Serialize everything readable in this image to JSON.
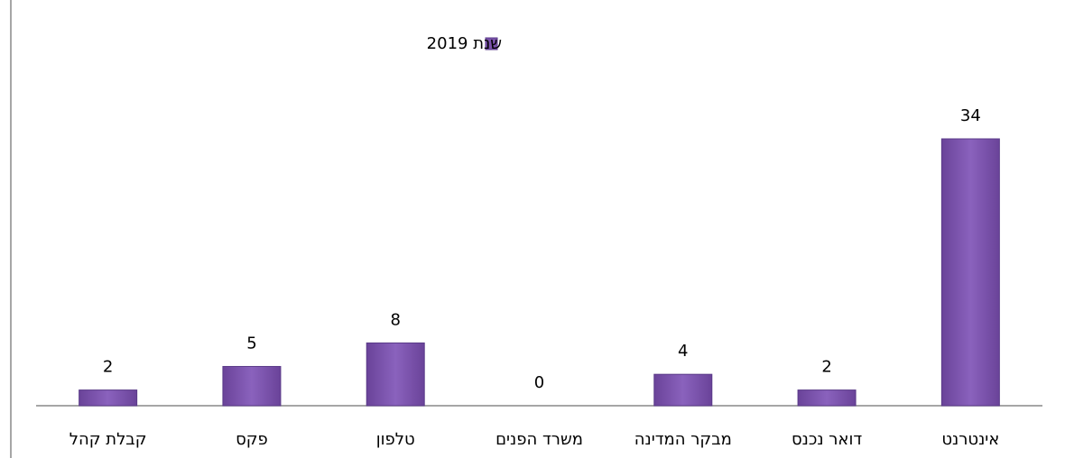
{
  "chart_data": {
    "type": "bar",
    "categories": [
      "קבלת קהל",
      "פקס",
      "טלפון",
      "משרד הפנים",
      "מבקר המדינה",
      "דואר נכנס",
      "אינטרנט"
    ],
    "series": [
      {
        "name": "שנת 2019",
        "color": "#7b52ab",
        "values": [
          2,
          5,
          8,
          0,
          4,
          2,
          34
        ]
      }
    ],
    "legend": "top"
  }
}
